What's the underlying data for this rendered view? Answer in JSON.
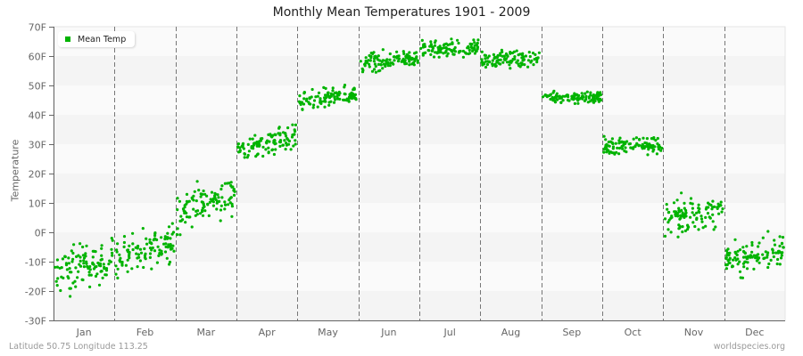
{
  "chart_data": {
    "type": "scatter",
    "title": "Monthly Mean Temperatures 1901 - 2009",
    "xlabel": "",
    "ylabel": "Temperature",
    "ylim": [
      -30,
      70
    ],
    "yticks": [
      "70F",
      "60F",
      "50F",
      "40F",
      "30F",
      "20F",
      "10F",
      "0F",
      "-10F",
      "-20F",
      "-30F"
    ],
    "categories": [
      "Jan",
      "Feb",
      "Mar",
      "Apr",
      "May",
      "Jun",
      "Jul",
      "Aug",
      "Sep",
      "Oct",
      "Nov",
      "Dec"
    ],
    "grid": true,
    "legend_position": "top-left",
    "series": [
      {
        "name": "Mean Temp",
        "color": "#00b300",
        "points_per_month": 109,
        "monthly_ranges": [
          {
            "month": "Jan",
            "start_mean": -15,
            "end_mean": -8,
            "spread": 7,
            "min": -25,
            "max": -2
          },
          {
            "month": "Feb",
            "start_mean": -9,
            "end_mean": -3,
            "spread": 6,
            "min": -18,
            "max": 3
          },
          {
            "month": "Mar",
            "start_mean": 6,
            "end_mean": 14,
            "spread": 6,
            "min": -5,
            "max": 23
          },
          {
            "month": "Apr",
            "start_mean": 28,
            "end_mean": 33,
            "spread": 4,
            "min": 24,
            "max": 38
          },
          {
            "month": "May",
            "start_mean": 44,
            "end_mean": 47,
            "spread": 3,
            "min": 40,
            "max": 52
          },
          {
            "month": "Jun",
            "start_mean": 57,
            "end_mean": 60,
            "spread": 3,
            "min": 53,
            "max": 65
          },
          {
            "month": "Jul",
            "start_mean": 62,
            "end_mean": 63,
            "spread": 2.5,
            "min": 58,
            "max": 68
          },
          {
            "month": "Aug",
            "start_mean": 59,
            "end_mean": 59,
            "spread": 2.5,
            "min": 55,
            "max": 64
          },
          {
            "month": "Sep",
            "start_mean": 46,
            "end_mean": 46,
            "spread": 2,
            "min": 42,
            "max": 51
          },
          {
            "month": "Oct",
            "start_mean": 29,
            "end_mean": 30,
            "spread": 3,
            "min": 20,
            "max": 37
          },
          {
            "month": "Nov",
            "start_mean": 5,
            "end_mean": 7,
            "spread": 5,
            "min": -3,
            "max": 17
          },
          {
            "month": "Dec",
            "start_mean": -10,
            "end_mean": -6,
            "spread": 5,
            "min": -22,
            "max": 3
          }
        ]
      }
    ]
  },
  "footer": {
    "location": "Latitude 50.75 Longitude 113.25",
    "source": "worldspecies.org"
  },
  "legend": {
    "label": "Mean Temp"
  },
  "style": {
    "point_color": "#00b300",
    "band_dark": "#f4f4f4",
    "band_light": "#fafafa",
    "axis_color": "#666666",
    "divider_color": "#777777"
  }
}
